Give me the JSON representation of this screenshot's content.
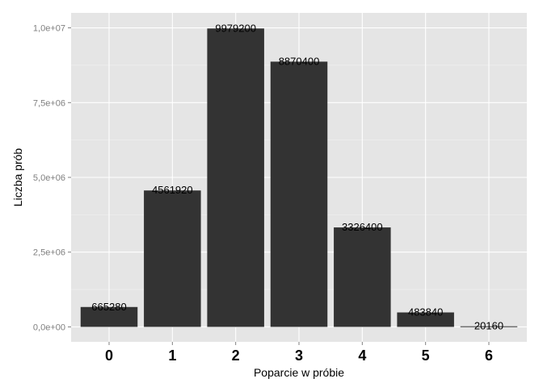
{
  "chart_data": {
    "type": "bar",
    "title": "",
    "xlabel": "Poparcie w próbie",
    "ylabel": "Liczba prób",
    "categories": [
      "0",
      "1",
      "2",
      "3",
      "4",
      "5",
      "6"
    ],
    "values": [
      665280,
      4561920,
      9979200,
      8870400,
      3326400,
      483840,
      20160
    ],
    "data_labels": [
      "665280",
      "4561920",
      "9979200",
      "8870400",
      "3326400",
      "483840",
      "20160"
    ],
    "ylim": [
      -500000,
      10500000
    ],
    "yticks": [
      0,
      2500000,
      5000000,
      7500000,
      10000000
    ],
    "ytick_labels": [
      "0,0e+00",
      "2,5e+06",
      "5,0e+06",
      "7,5e+06",
      "1,0e+07"
    ],
    "grid": true,
    "legend": "none",
    "colors": {
      "bar": "#333333",
      "panel_background": "#e5e5e5",
      "grid_major": "#ffffff",
      "grid_minor": "#f2f2f2",
      "tick_label": "#7f7f7f"
    }
  }
}
